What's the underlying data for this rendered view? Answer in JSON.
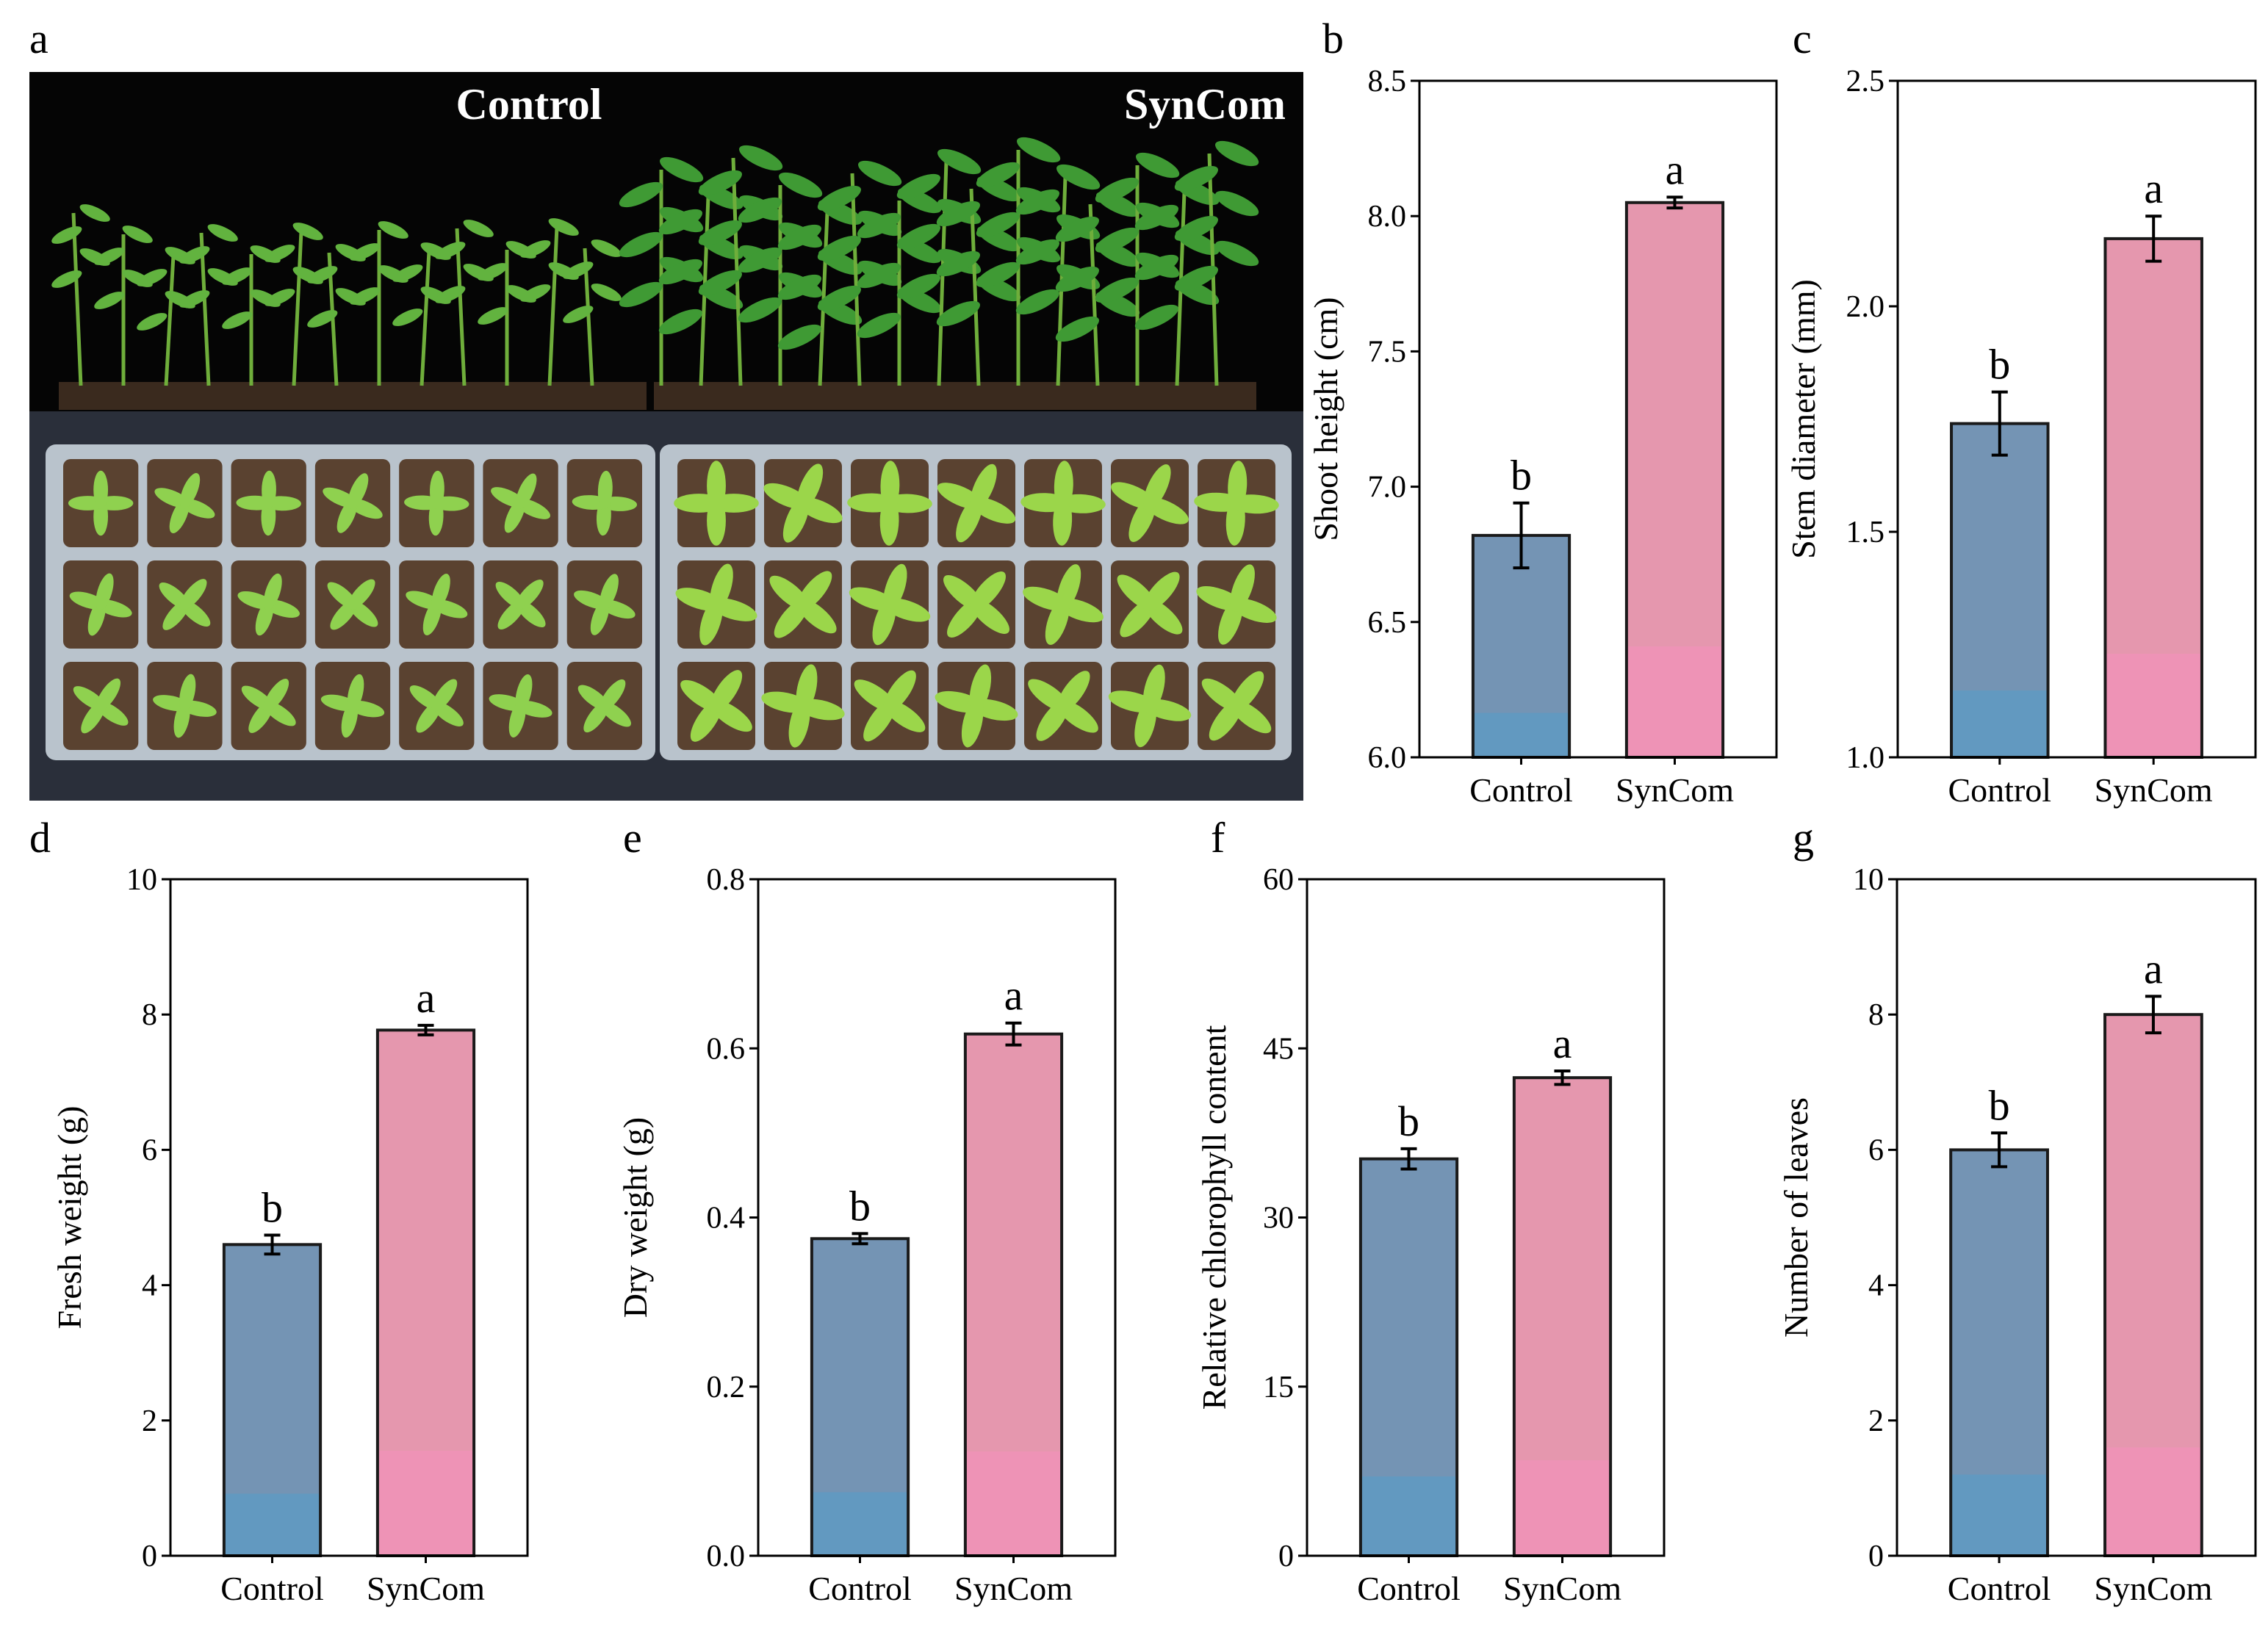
{
  "photo": {
    "letter": "a",
    "left_label": "Control",
    "right_label": "SynCom"
  },
  "colors": {
    "control_top": "#7494b4",
    "control_bottom": "#6299c0",
    "syncom_top": "#e597ae",
    "syncom_bottom": "#ee93b6",
    "bar_edge": "#1a1a1a",
    "background": "#ffffff"
  },
  "chart_data": [
    {
      "panel": "b",
      "type": "bar",
      "categories": [
        "Control",
        "SynCom"
      ],
      "values": [
        6.82,
        8.05
      ],
      "errors": [
        0.12,
        0.02
      ],
      "significance": [
        "b",
        "a"
      ],
      "ylabel": "Shoot height (cm)",
      "ylim": [
        6.0,
        8.5
      ],
      "yticks": [
        "6.0",
        "6.5",
        "7.0",
        "7.5",
        "8.0",
        "8.5"
      ]
    },
    {
      "panel": "c",
      "type": "bar",
      "categories": [
        "Control",
        "SynCom"
      ],
      "values": [
        1.74,
        2.15
      ],
      "errors": [
        0.07,
        0.05
      ],
      "significance": [
        "b",
        "a"
      ],
      "ylabel": "Stem diameter (mm)",
      "ylim": [
        1.0,
        2.5
      ],
      "yticks": [
        "1.0",
        "1.5",
        "2.0",
        "2.5"
      ]
    },
    {
      "panel": "d",
      "type": "bar",
      "categories": [
        "Control",
        "SynCom"
      ],
      "values": [
        4.6,
        7.77
      ],
      "errors": [
        0.14,
        0.07
      ],
      "significance": [
        "b",
        "a"
      ],
      "ylabel": "Fresh weight (g)",
      "ylim": [
        0,
        10
      ],
      "yticks": [
        "0",
        "2",
        "4",
        "6",
        "8",
        "10"
      ]
    },
    {
      "panel": "e",
      "type": "bar",
      "categories": [
        "Control",
        "SynCom"
      ],
      "values": [
        0.375,
        0.617
      ],
      "errors": [
        0.006,
        0.013
      ],
      "significance": [
        "b",
        "a"
      ],
      "ylabel": "Dry weight (g)",
      "ylim": [
        0.0,
        0.8
      ],
      "yticks": [
        "0.0",
        "0.2",
        "0.4",
        "0.6",
        "0.8"
      ]
    },
    {
      "panel": "f",
      "type": "bar",
      "categories": [
        "Control",
        "SynCom"
      ],
      "values": [
        35.2,
        42.4
      ],
      "errors": [
        0.9,
        0.6
      ],
      "significance": [
        "b",
        "a"
      ],
      "ylabel": "Relative chlorophyll content",
      "ylim": [
        0,
        60
      ],
      "yticks": [
        "0",
        "15",
        "30",
        "45",
        "60"
      ]
    },
    {
      "panel": "g",
      "type": "bar",
      "categories": [
        "Control",
        "SynCom"
      ],
      "values": [
        6.0,
        8.0
      ],
      "errors": [
        0.25,
        0.27
      ],
      "significance": [
        "b",
        "a"
      ],
      "ylabel": "Number of leaves",
      "ylim": [
        0,
        10
      ],
      "yticks": [
        "0",
        "2",
        "4",
        "6",
        "8",
        "10"
      ]
    }
  ]
}
